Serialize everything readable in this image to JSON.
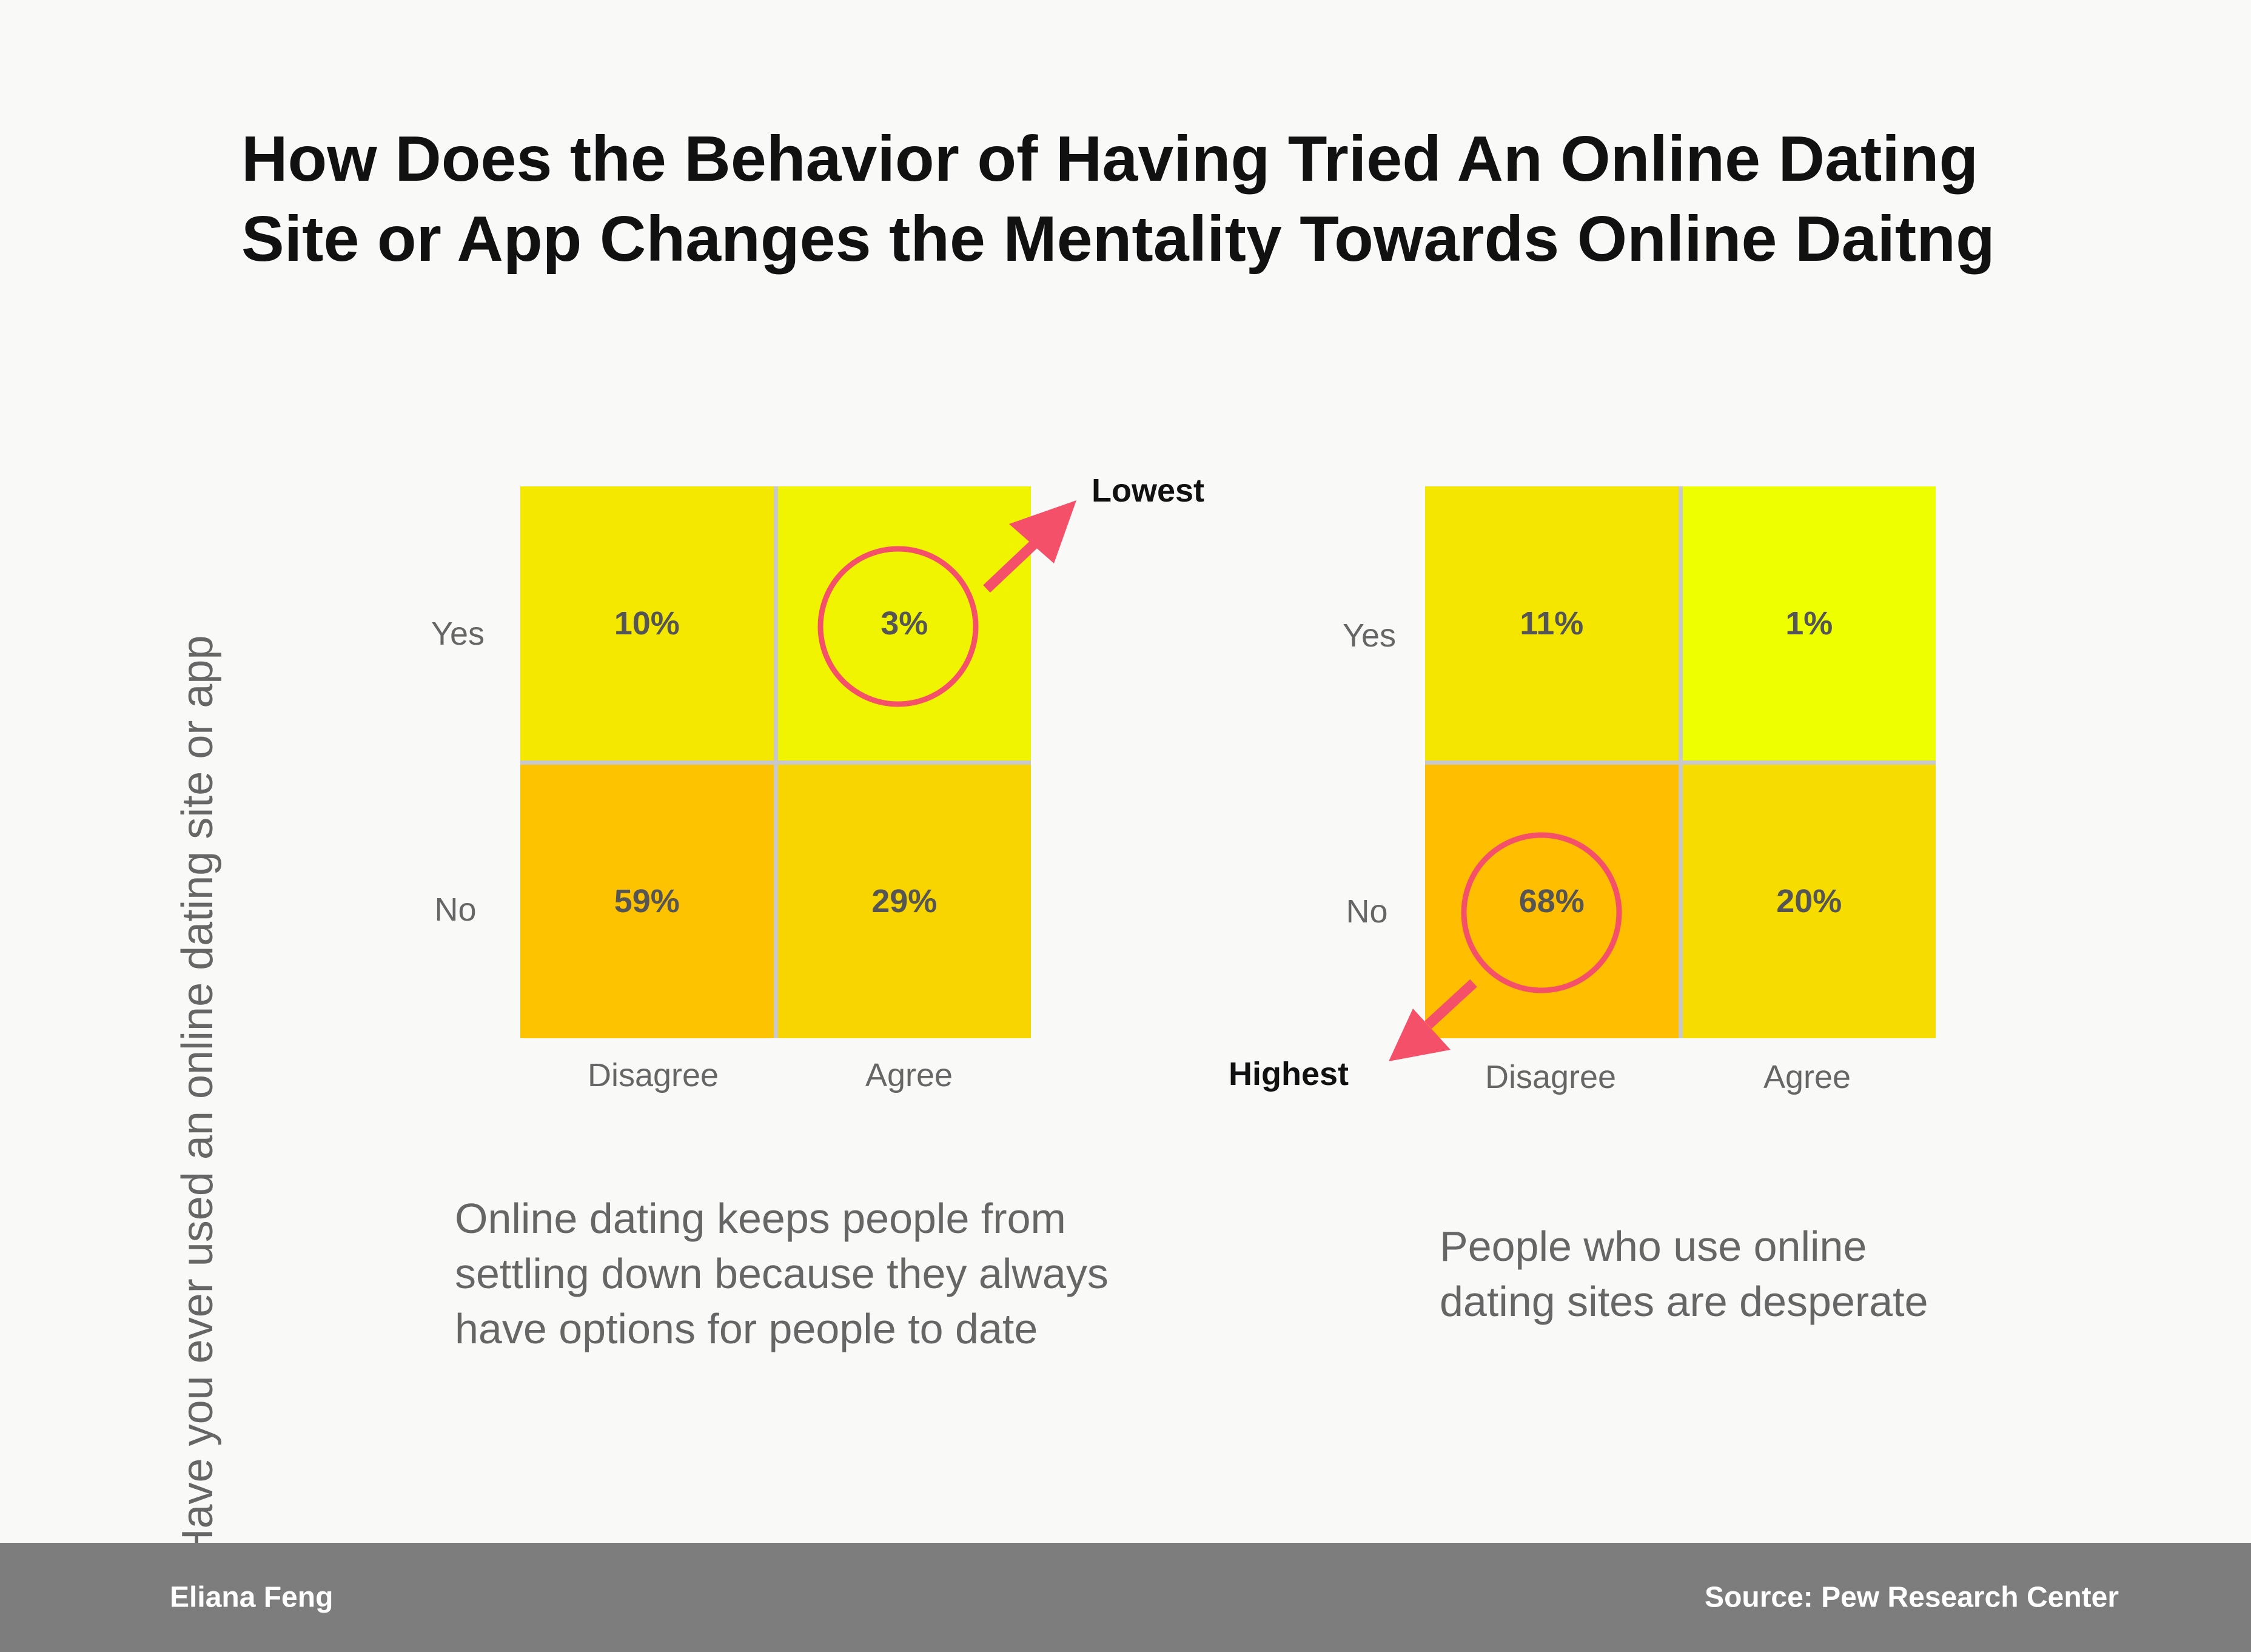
{
  "title_lines": [
    "How Does the Behavior of Having Tried An Online Dating",
    "Site or App Changes the Mentality Towards Online Daitng"
  ],
  "chart_data": [
    {
      "type": "heatmap",
      "caption_lines": [
        "Online dating keeps people from",
        "settling down because they always",
        "have options for people to date"
      ],
      "ylabel": "Have you ever used an online dating site or app",
      "rows": [
        "Yes",
        "No"
      ],
      "columns": [
        "Disagree",
        "Agree"
      ],
      "values": [
        [
          10,
          3
        ],
        [
          59,
          29
        ]
      ],
      "labels": [
        [
          "10%",
          "3%"
        ],
        [
          "59%",
          "29%"
        ]
      ],
      "unit": "%",
      "callout": {
        "row": 0,
        "col": 1,
        "text": "Lowest"
      }
    },
    {
      "type": "heatmap",
      "caption_lines": [
        "People who use online",
        "dating sites are desperate"
      ],
      "ylabel": "Have you ever used an online dating site or app",
      "rows": [
        "Yes",
        "No"
      ],
      "columns": [
        "Disagree",
        "Agree"
      ],
      "values": [
        [
          11,
          1
        ],
        [
          68,
          20
        ]
      ],
      "labels": [
        [
          "11%",
          "1%"
        ],
        [
          "68%",
          "20%"
        ]
      ],
      "unit": "%",
      "callout": {
        "row": 1,
        "col": 0,
        "text": "Highest"
      }
    }
  ],
  "colors": {
    "low": "#eeff00",
    "high": "#ffbe00",
    "grid": "#c8c8c8",
    "callout": "#f5506a",
    "footer_bg": "#7d7d7d"
  },
  "footer": {
    "author": "Eliana Feng",
    "source": "Source: Pew Research Center"
  }
}
